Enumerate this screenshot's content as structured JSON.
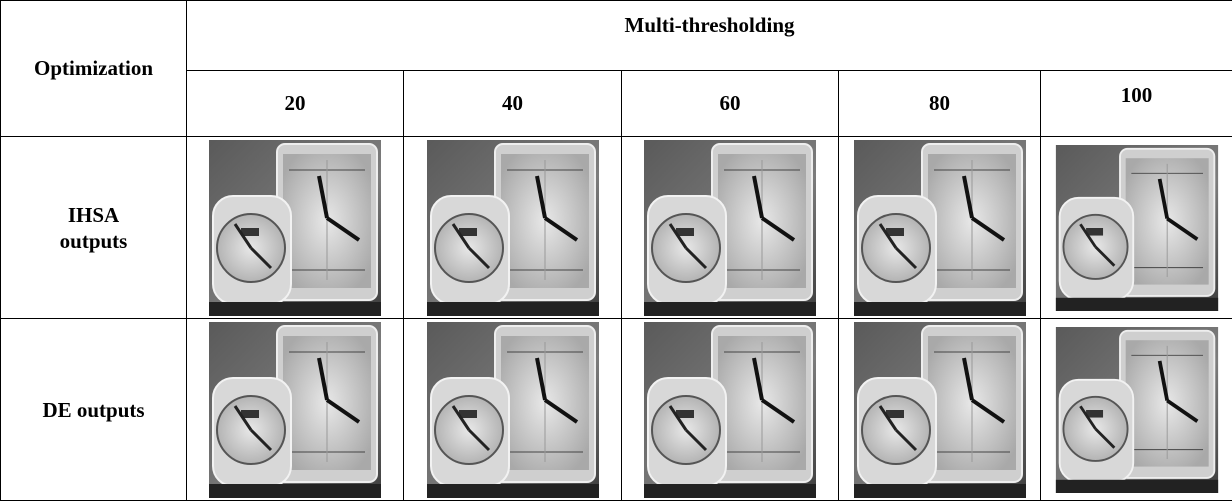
{
  "header": {
    "row_header": "Optimization",
    "group": "Multi-thresholding",
    "columns": [
      "20",
      "40",
      "60",
      "80",
      "100"
    ]
  },
  "rows": [
    {
      "label": "IHSA outputs"
    },
    {
      "label": "DE outputs"
    }
  ]
}
